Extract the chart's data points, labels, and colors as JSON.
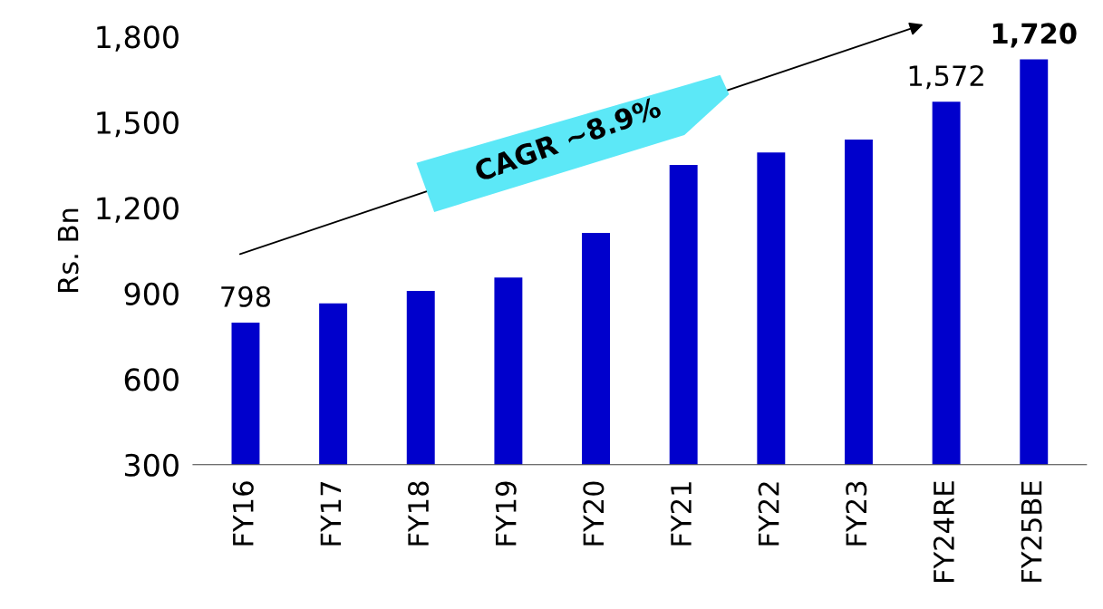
{
  "chart_data": {
    "type": "bar",
    "ylabel": "Rs. Bn",
    "categories": [
      "FY16",
      "FY17",
      "FY18",
      "FY19",
      "FY20",
      "FY21",
      "FY22",
      "FY23",
      "FY24RE",
      "FY25BE"
    ],
    "values": [
      798,
      865,
      909,
      956,
      1112,
      1350,
      1394,
      1439,
      1572,
      1720
    ],
    "value_labels": [
      "798",
      null,
      null,
      null,
      null,
      null,
      null,
      null,
      "1,572",
      "1,720"
    ],
    "color": "#0000cc",
    "ylim": [
      300,
      1800
    ],
    "yticks": [
      300,
      600,
      900,
      {
        "value": 1200,
        "label": "1,200"
      },
      {
        "value": 1500,
        "label": "1,500"
      },
      {
        "value": 1800,
        "label": "1,800"
      }
    ],
    "grid": false,
    "annotations": [
      "CAGR ~8.9%"
    ]
  }
}
